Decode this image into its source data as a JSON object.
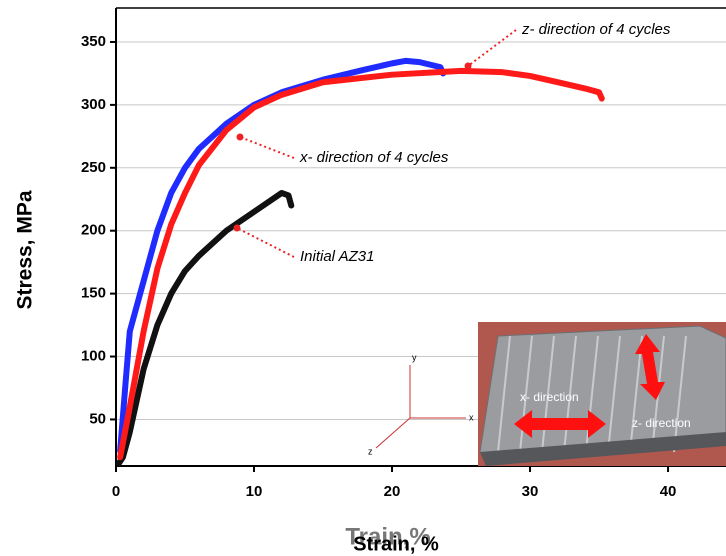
{
  "chart_data": {
    "type": "line",
    "y_label": "Stress, MPa",
    "x_label": "Strain, %",
    "x_label_overlay": "Train,%",
    "xlim": [
      0,
      44.2
    ],
    "ylim": [
      13,
      377
    ],
    "xticks": [
      0,
      10,
      20,
      30,
      40
    ],
    "yticks": [
      50,
      100,
      150,
      200,
      250,
      300,
      350
    ],
    "grid": true,
    "series": [
      {
        "name": "z- direction of 4 cycles",
        "color": "#ff1a1a",
        "x": [
          0.3,
          1,
          2,
          3,
          4,
          5,
          6,
          8,
          10,
          12,
          15,
          20,
          25,
          28,
          30,
          32,
          34,
          35,
          35.2
        ],
        "values": [
          20,
          60,
          120,
          170,
          205,
          230,
          252,
          280,
          298,
          308,
          318,
          324,
          327,
          326,
          323,
          318,
          313,
          310,
          305
        ]
      },
      {
        "name": "x- direction of 4 cycles",
        "color": "#1f2bff",
        "x": [
          0.3,
          0.7,
          1,
          2,
          3,
          4,
          5,
          6,
          8,
          10,
          12,
          15,
          18,
          20,
          21,
          22,
          23.5,
          23.7
        ],
        "values": [
          25,
          80,
          120,
          160,
          200,
          230,
          250,
          265,
          285,
          300,
          310,
          320,
          328,
          333,
          335,
          334,
          330,
          325
        ]
      },
      {
        "name": "Initial AZ31",
        "color": "#111111",
        "x": [
          0.2,
          0.5,
          1,
          2,
          3,
          4,
          5,
          6,
          8,
          10,
          12,
          12.5,
          12.7
        ],
        "values": [
          15,
          20,
          40,
          90,
          125,
          150,
          168,
          180,
          200,
          215,
          230,
          228,
          220
        ]
      }
    ],
    "inset": {
      "x_direction": "x- direction",
      "z_direction": "z- direction",
      "axis_y": "y",
      "axis_x": "x",
      "axis_z": "z"
    }
  }
}
